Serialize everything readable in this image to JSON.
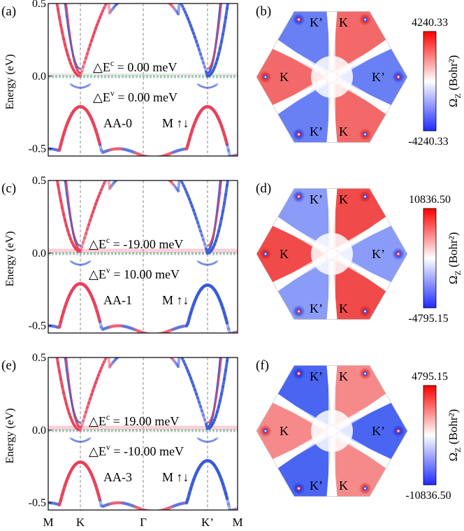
{
  "figure": {
    "x_ticks": [
      "M",
      "K",
      "Γ",
      "K’",
      "M"
    ],
    "y_axis_label": "Energy (eV)",
    "y_ticks": [
      "0.5",
      "0.0",
      "-0.5"
    ],
    "colorbar_label_main": "Ω",
    "colorbar_label_sub": "Z",
    "colorbar_label_unit": " (Bohr²)",
    "panels": [
      {
        "band_letter": "(a)",
        "map_letter": "(b)",
        "config": "AA-0",
        "magnet": "M ↑↓",
        "dEc_text": "△E",
        "dEc_sup": "c",
        "dEc_value": " = 0.00 meV",
        "dEv_text": "△E",
        "dEv_sup": "v",
        "dEv_value": " = 0.00 meV",
        "cbar_max": "4240.33",
        "cbar_min": "-4240.33",
        "k_labels": [
          "K’",
          "K",
          "K",
          "K’",
          "K’",
          "K"
        ],
        "chart_data": {
          "type": "line",
          "xlabel": "",
          "ylabel": "Energy (eV)",
          "ylim": [
            -0.55,
            0.5
          ],
          "x_ticks": [
            "M",
            "K",
            "Γ",
            "K’",
            "M"
          ],
          "delta_Ec_meV": 0.0,
          "delta_Ev_meV": 0.0,
          "conduction_edge_K_eV": 0.0,
          "conduction_edge_Kp_eV": 0.0,
          "valence_top_K_eV": -0.21,
          "valence_top_Kp_eV": -0.21,
          "berry_curvature_max": 4240.33,
          "berry_curvature_min": -4240.33
        }
      },
      {
        "band_letter": "(c)",
        "map_letter": "(d)",
        "config": "AA-1",
        "magnet": "M ↑↓",
        "dEc_text": "△E",
        "dEc_sup": "c",
        "dEc_value": " = -19.00 meV",
        "dEv_text": "△E",
        "dEv_sup": "v",
        "dEv_value": " = 10.00 meV",
        "cbar_max": "10836.50",
        "cbar_min": "-4795.15",
        "k_labels": [
          "K’",
          "K",
          "K",
          "K’",
          "K’",
          "K"
        ],
        "chart_data": {
          "type": "line",
          "xlabel": "",
          "ylabel": "Energy (eV)",
          "ylim": [
            -0.55,
            0.5
          ],
          "x_ticks": [
            "M",
            "K",
            "Γ",
            "K’",
            "M"
          ],
          "delta_Ec_meV": -19.0,
          "delta_Ev_meV": 10.0,
          "conduction_edge_K_eV": 0.01,
          "conduction_edge_Kp_eV": 0.0,
          "valence_top_K_eV": -0.21,
          "valence_top_Kp_eV": -0.22,
          "berry_curvature_max": 10836.5,
          "berry_curvature_min": -4795.15
        }
      },
      {
        "band_letter": "(e)",
        "map_letter": "(f)",
        "config": "AA-3",
        "magnet": "M ↑↓",
        "dEc_text": "△E",
        "dEc_sup": "c",
        "dEc_value": " = 19.00 meV",
        "dEv_text": "△E",
        "dEv_sup": "v",
        "dEv_value": " = -10.00 meV",
        "cbar_max": "4795.15",
        "cbar_min": "-10836.50",
        "k_labels": [
          "K’",
          "K",
          "K",
          "K’",
          "K’",
          "K"
        ],
        "chart_data": {
          "type": "line",
          "xlabel": "",
          "ylabel": "Energy (eV)",
          "ylim": [
            -0.55,
            0.5
          ],
          "x_ticks": [
            "M",
            "K",
            "Γ",
            "K’",
            "M"
          ],
          "delta_Ec_meV": 19.0,
          "delta_Ev_meV": -10.0,
          "conduction_edge_K_eV": 0.0,
          "conduction_edge_Kp_eV": 0.01,
          "valence_top_K_eV": -0.22,
          "valence_top_Kp_eV": -0.21,
          "berry_curvature_max": 4795.15,
          "berry_curvature_min": -10836.5
        }
      }
    ],
    "colors": {
      "red": "#e8405a",
      "blue": "#3a5bd6",
      "map_red": "#ee2a2a",
      "map_blue": "#2a4af0",
      "fermi_green": "#2ca02c",
      "highlight_pink": "#f4a7b9"
    }
  }
}
